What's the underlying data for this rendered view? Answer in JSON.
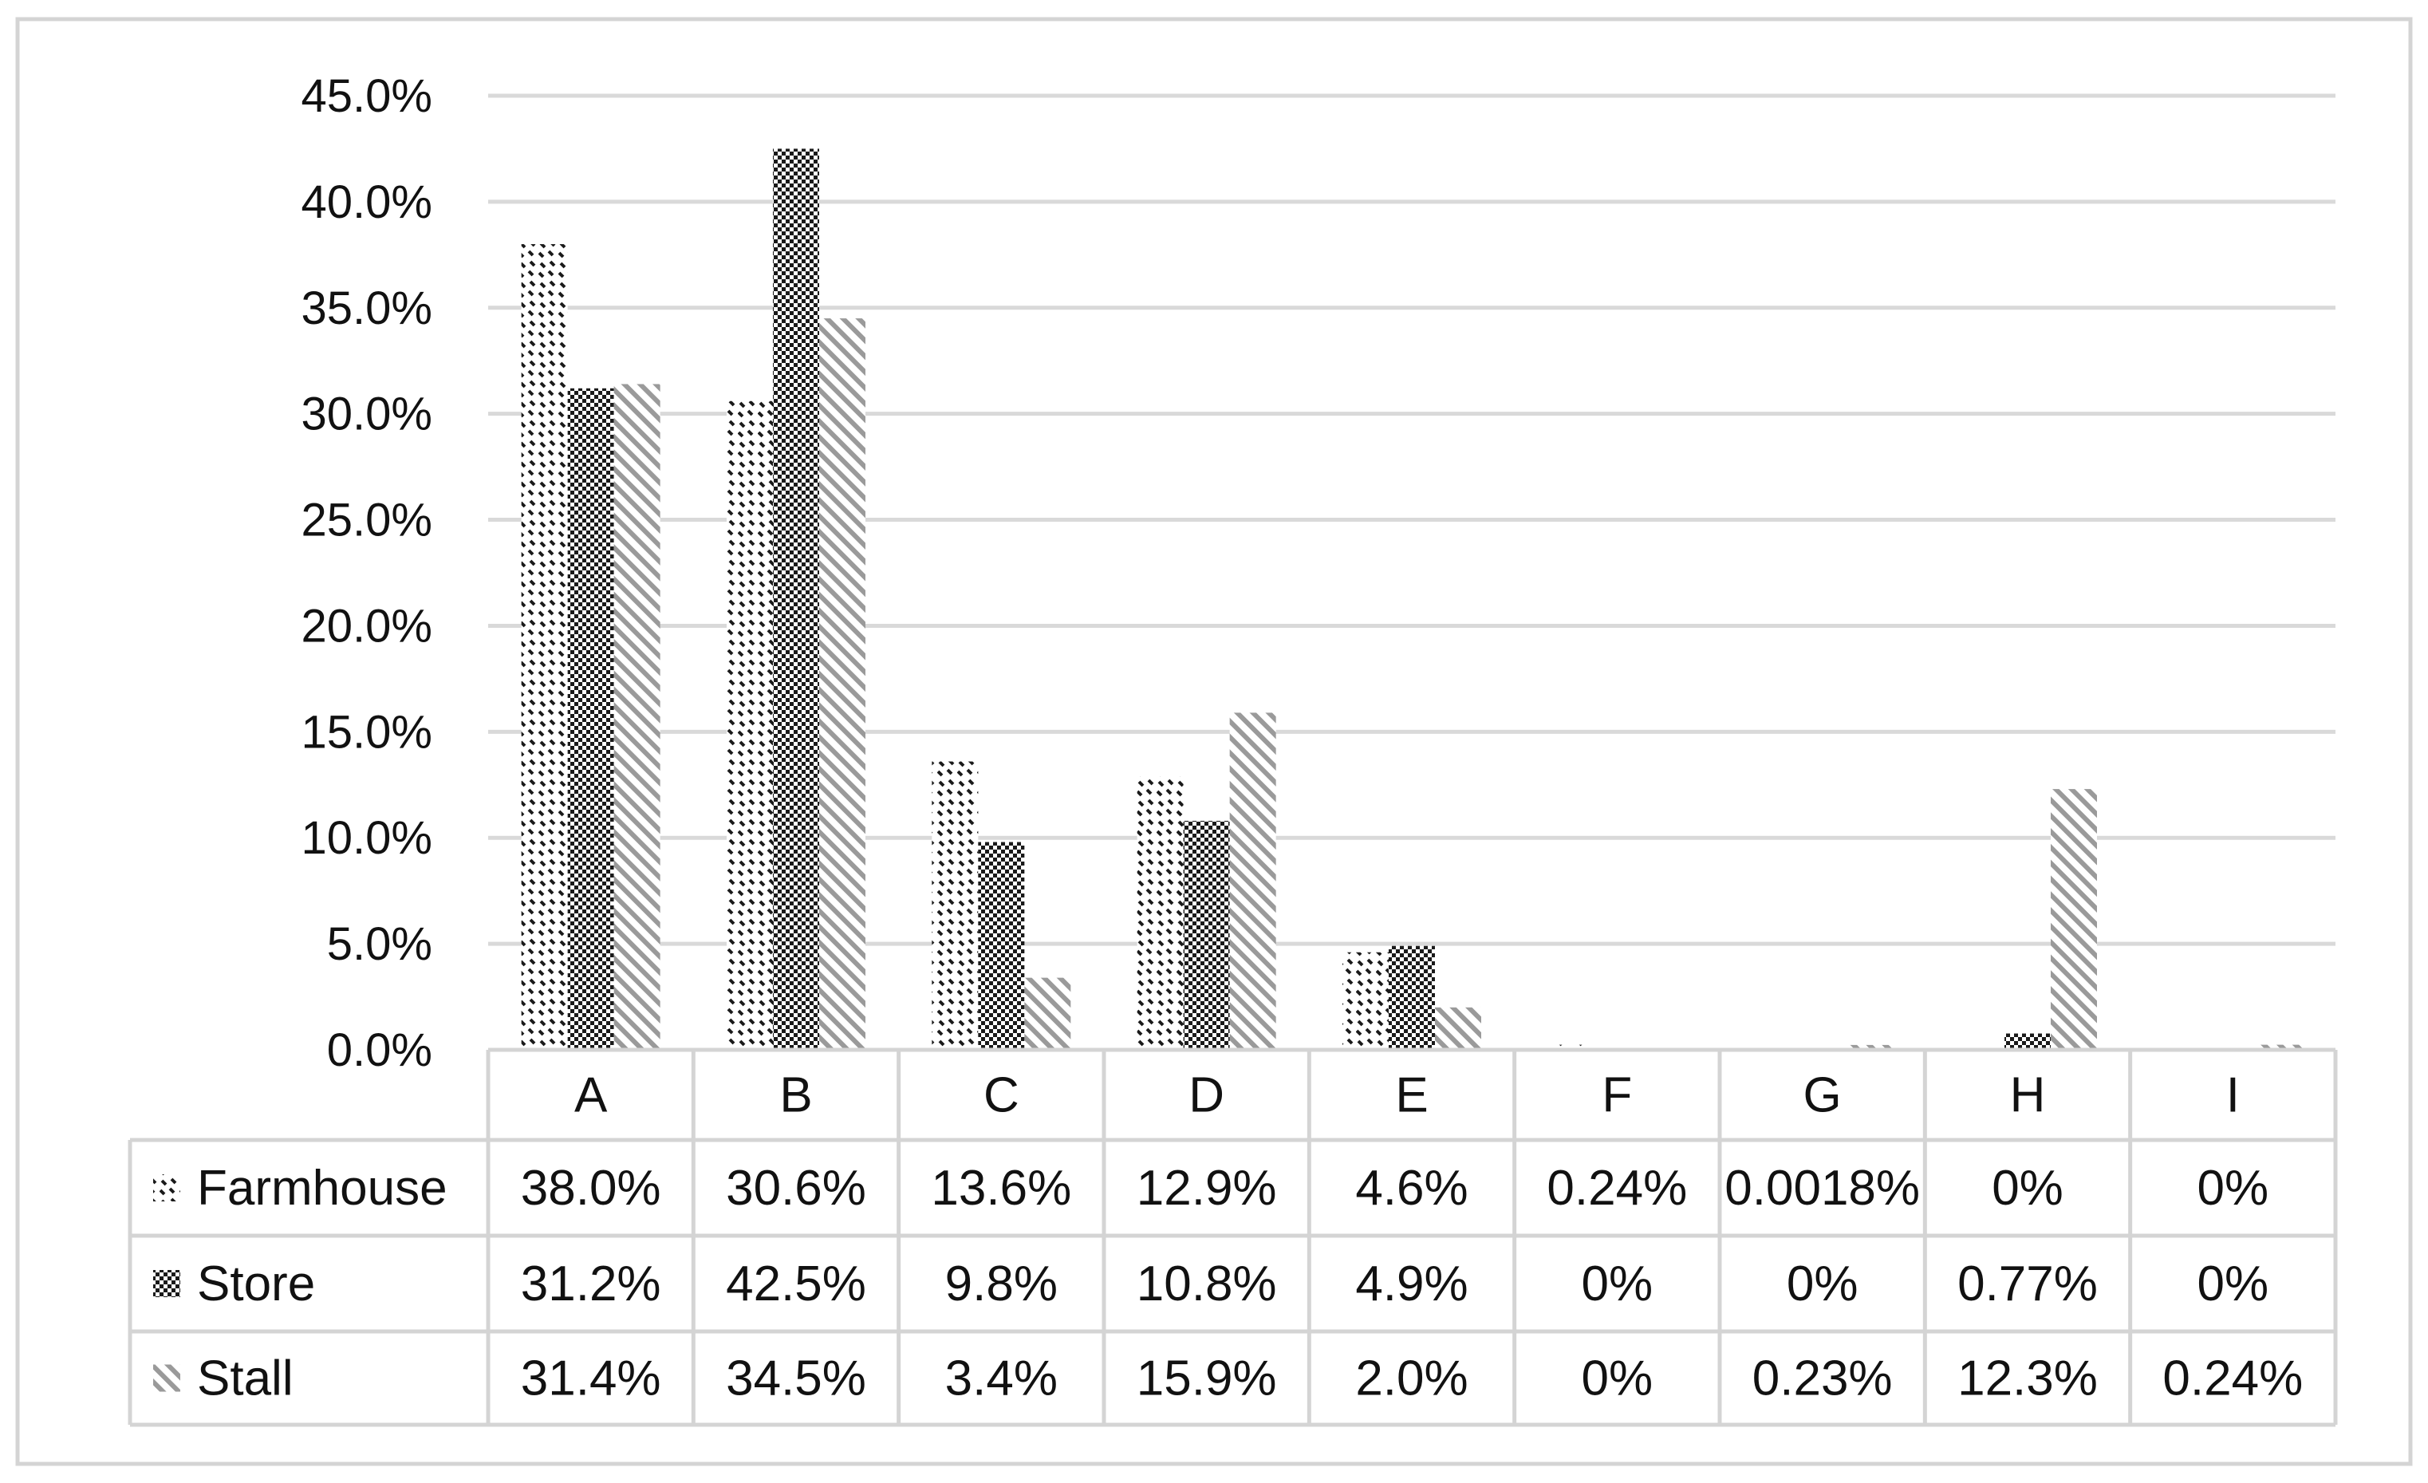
{
  "chart_data": {
    "type": "bar",
    "categories": [
      "A",
      "B",
      "C",
      "D",
      "E",
      "F",
      "G",
      "H",
      "I"
    ],
    "series": [
      {
        "name": "Farmhouse",
        "values": [
          38.0,
          30.6,
          13.6,
          12.9,
          4.6,
          0.24,
          0.0018,
          0,
          0
        ],
        "labels": [
          "38.0%",
          "30.6%",
          "13.6%",
          "12.9%",
          "4.6%",
          "0.24%",
          "0.0018%",
          "0%",
          "0%"
        ],
        "pattern": "dashed-diagonal",
        "color": "#1a1a1a"
      },
      {
        "name": "Store",
        "values": [
          31.2,
          42.5,
          9.8,
          10.8,
          4.9,
          0,
          0,
          0.77,
          0
        ],
        "labels": [
          "31.2%",
          "42.5%",
          "9.8%",
          "10.8%",
          "4.9%",
          "0%",
          "0%",
          "0.77%",
          "0%"
        ],
        "pattern": "checkerboard",
        "color": "#1a1a1a"
      },
      {
        "name": "Stall",
        "values": [
          31.4,
          34.5,
          3.4,
          15.9,
          2.0,
          0,
          0.23,
          12.3,
          0.24
        ],
        "labels": [
          "31.4%",
          "34.5%",
          "3.4%",
          "15.9%",
          "2.0%",
          "0%",
          "0.23%",
          "12.3%",
          "0.24%"
        ],
        "pattern": "light-diagonal-stripes",
        "color": "#9a9a9a"
      }
    ],
    "ylim": [
      0,
      45
    ],
    "yticks": [
      "0.0%",
      "5.0%",
      "10.0%",
      "15.0%",
      "20.0%",
      "25.0%",
      "30.0%",
      "35.0%",
      "40.0%",
      "45.0%"
    ],
    "ytick_values": [
      0,
      5,
      10,
      15,
      20,
      25,
      30,
      35,
      40,
      45
    ],
    "grid": true,
    "legend": "data-table-below",
    "title": "",
    "xlabel": "",
    "ylabel": ""
  }
}
